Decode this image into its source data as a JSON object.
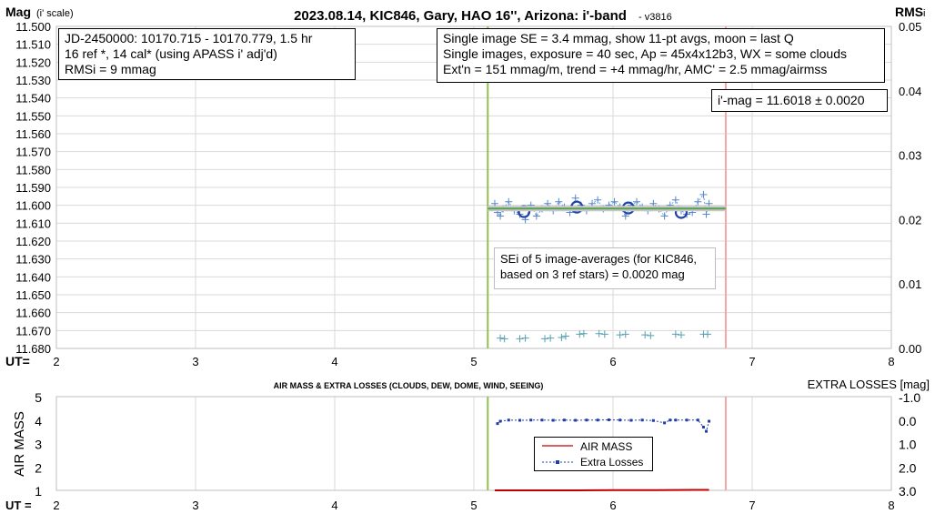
{
  "chart_data": [
    {
      "type": "scatter",
      "title": "2023.08.14, KIC846, Gary, HAO 16'', Arizona: i'-band",
      "version": "- v3816",
      "ylabel": "Mag",
      "ylabel_note": "(i' scale)",
      "y2label": "RMS",
      "y2label_sub": "i",
      "xlabel": "UT=",
      "xlim": [
        2,
        8
      ],
      "x_ticks": [
        "2",
        "3",
        "4",
        "5",
        "6",
        "7",
        "8"
      ],
      "ylim": [
        11.5,
        11.68
      ],
      "y_reversed": true,
      "y_ticks": [
        "11.500",
        "11.510",
        "11.520",
        "11.530",
        "11.540",
        "11.550",
        "11.560",
        "11.570",
        "11.580",
        "11.590",
        "11.600",
        "11.610",
        "11.620",
        "11.630",
        "11.640",
        "11.650",
        "11.660",
        "11.670",
        "11.680"
      ],
      "y2lim": [
        0,
        0.05
      ],
      "y2_ticks": [
        "0.00",
        "0.01",
        "0.02",
        "0.03",
        "0.04",
        "0.05"
      ],
      "grid": true,
      "vertical_lines": [
        {
          "x": 5.1,
          "color": "#92c050"
        },
        {
          "x": 6.81,
          "color": "#f4a6a6"
        }
      ],
      "series": [
        {
          "role": "single-image magnitudes",
          "color": "#5588cc",
          "marker": "+",
          "x": [
            5.15,
            5.17,
            5.19,
            5.21,
            5.25,
            5.29,
            5.33,
            5.37,
            5.41,
            5.45,
            5.49,
            5.53,
            5.57,
            5.61,
            5.65,
            5.69,
            5.73,
            5.77,
            5.81,
            5.85,
            5.89,
            5.93,
            5.97,
            6.01,
            6.05,
            6.09,
            6.13,
            6.17,
            6.21,
            6.25,
            6.29,
            6.33,
            6.37,
            6.41,
            6.45,
            6.49,
            6.53,
            6.57,
            6.61,
            6.65,
            6.67,
            6.69
          ],
          "y": [
            11.599,
            11.604,
            11.606,
            11.602,
            11.598,
            11.603,
            11.605,
            11.608,
            11.6,
            11.606,
            11.602,
            11.599,
            11.603,
            11.598,
            11.601,
            11.604,
            11.596,
            11.6,
            11.603,
            11.599,
            11.597,
            11.602,
            11.6,
            11.598,
            11.601,
            11.606,
            11.6,
            11.598,
            11.601,
            11.603,
            11.599,
            11.602,
            11.606,
            11.6,
            11.597,
            11.603,
            11.605,
            11.604,
            11.598,
            11.594,
            11.605,
            11.599
          ]
        },
        {
          "role": "11-pt averages",
          "color": "#2244aa",
          "marker": "circle",
          "x": [
            5.36,
            5.74,
            6.11,
            6.49
          ],
          "y": [
            11.6035,
            11.601,
            11.6015,
            11.604
          ]
        },
        {
          "role": "mean i'-mag",
          "color": "#5aa052",
          "type": "line",
          "x": [
            5.1,
            6.81
          ],
          "y": [
            11.6018,
            11.6018
          ]
        },
        {
          "role": "single image SE",
          "color": "#55a0b0",
          "marker": "+",
          "axis": "right",
          "x": [
            5.19,
            5.22,
            5.33,
            5.37,
            5.51,
            5.55,
            5.63,
            5.66,
            5.76,
            5.79,
            5.9,
            5.94,
            6.05,
            6.09,
            6.23,
            6.27,
            6.45,
            6.49,
            6.65,
            6.68
          ],
          "y": [
            0.0016,
            0.0015,
            0.0015,
            0.0016,
            0.0015,
            0.0016,
            0.0017,
            0.0019,
            0.0022,
            0.0023,
            0.0023,
            0.0022,
            0.0021,
            0.0022,
            0.0021,
            0.002,
            0.0022,
            0.0021,
            0.0022,
            0.0022
          ]
        }
      ],
      "annotations": {
        "info_lines": [
          "JD-2450000: 10170.715 - 10170.779, 1.5  hr",
          "16 ref *, 14 cal* (using APASS i' adj'd)",
          "RMSi = 9 mmag"
        ],
        "se_lines": [
          "Single image SE = 3.4 mmag, show 11-pt avgs, moon = last Q",
          "Single images, exposure = 40 sec, Ap = 45x4x12b3, WX = some clouds",
          "Ext'n = 151 mmag/m, trend = +4 mmag/hr, AMC' = 2.5 mmag/airmss"
        ],
        "mag_result": "i'-mag = 11.6018 ± 0.0020",
        "sei_lines": [
          "SEi of 5 image-averages (for KIC846,",
          "based on 3 ref stars) = 0.0020 mag"
        ]
      }
    },
    {
      "type": "line",
      "title": "AIR MASS & EXTRA LOSSES (CLOUDS, DEW, DOME, WIND, SEEING)",
      "ylabel": "AIR MASS",
      "y2label": "EXTRA LOSSES [mag]",
      "xlabel": "UT =",
      "xlim": [
        2,
        8
      ],
      "x_ticks": [
        "2",
        "3",
        "4",
        "5",
        "6",
        "7",
        "8"
      ],
      "ylim": [
        1,
        5
      ],
      "y_ticks": [
        "1",
        "2",
        "3",
        "4",
        "5"
      ],
      "y2lim": [
        3.0,
        -1.0
      ],
      "y2_ticks": [
        "-1.0",
        "0.0",
        "1.0",
        "2.0",
        "3.0"
      ],
      "legend": [
        "AIR MASS",
        "Extra Losses"
      ],
      "series": [
        {
          "name": "AIR MASS",
          "color": "#c00000",
          "x": [
            5.15,
            5.4,
            5.7,
            6.0,
            6.3,
            6.6,
            6.69
          ],
          "y": [
            1.0,
            1.0,
            1.0,
            1.01,
            1.01,
            1.02,
            1.02
          ]
        },
        {
          "name": "Extra Losses",
          "color": "#1f3da8",
          "axis": "right",
          "x": [
            5.17,
            5.19,
            5.25,
            5.33,
            5.41,
            5.49,
            5.57,
            5.65,
            5.73,
            5.81,
            5.89,
            5.97,
            6.05,
            6.13,
            6.21,
            6.29,
            6.37,
            6.41,
            6.45,
            6.53,
            6.61,
            6.65,
            6.67,
            6.69
          ],
          "y": [
            0.15,
            0.05,
            0.0,
            0.01,
            0.0,
            0.0,
            0.01,
            0.0,
            0.01,
            0.0,
            0.0,
            -0.01,
            0.0,
            0.01,
            0.0,
            0.02,
            0.12,
            0.0,
            0.0,
            0.0,
            0.0,
            0.3,
            0.48,
            0.05
          ]
        }
      ]
    }
  ]
}
